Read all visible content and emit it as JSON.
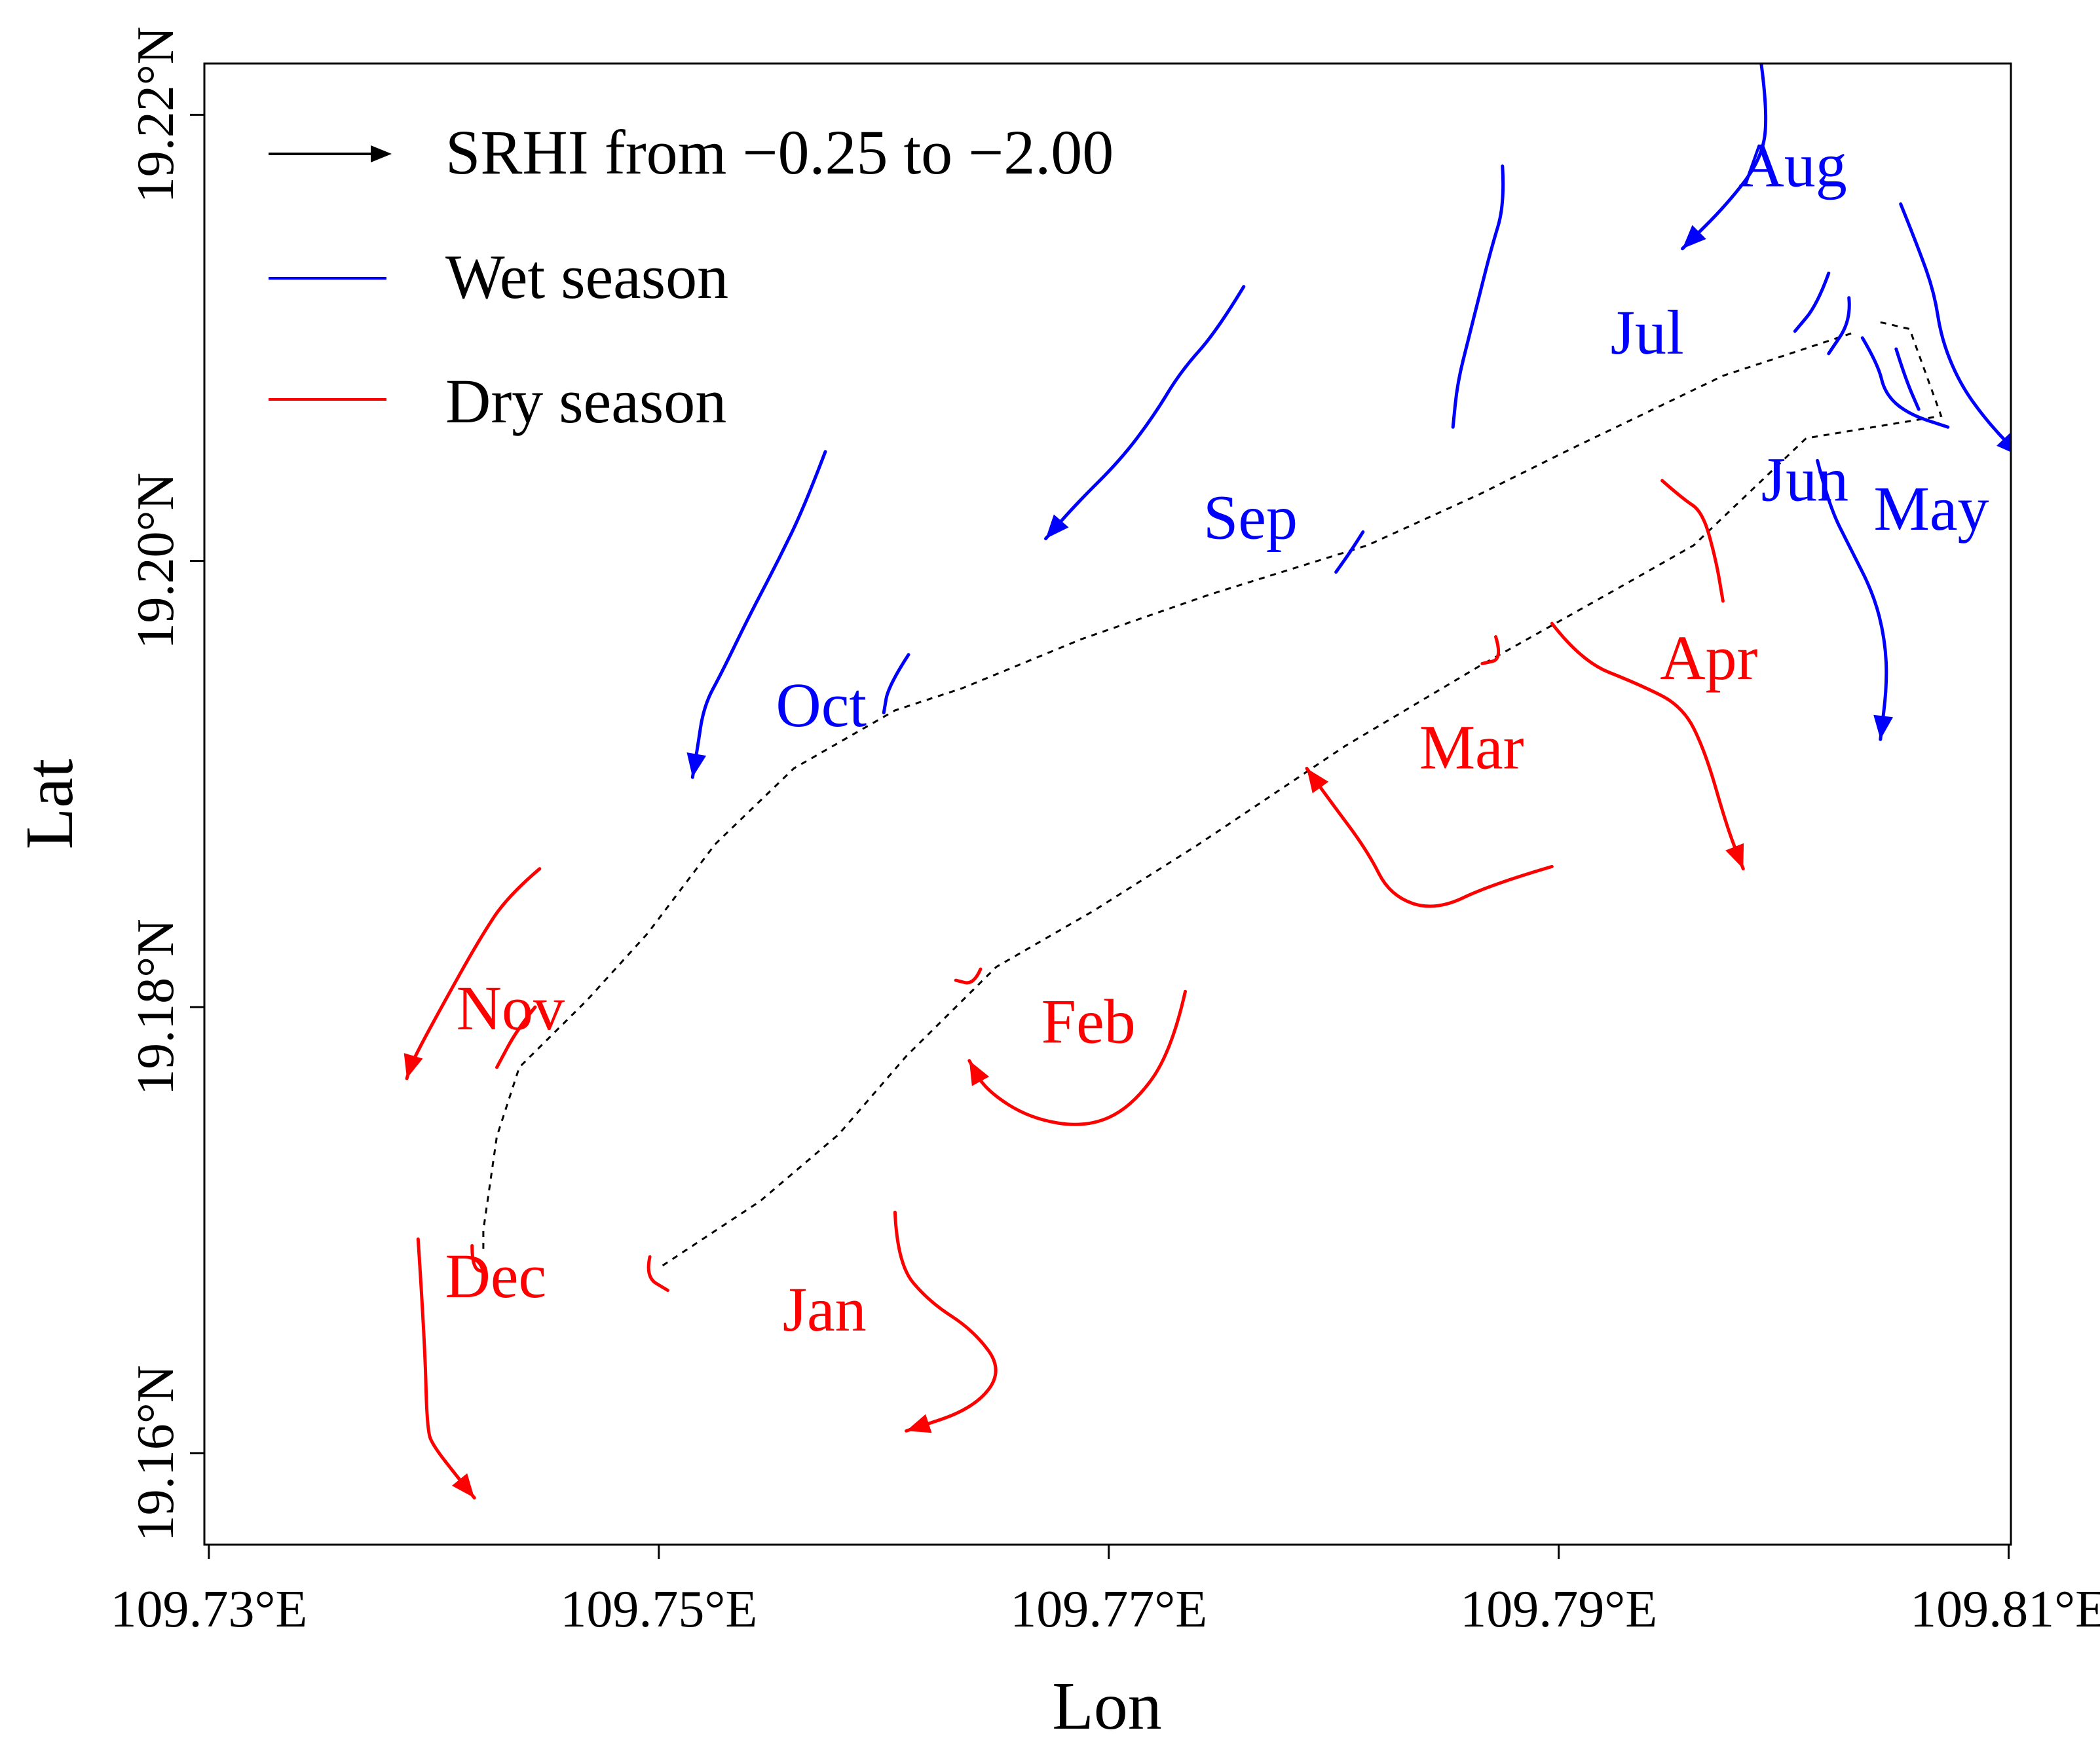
{
  "chart_data": {
    "type": "line",
    "title": "",
    "xlabel": "Lon",
    "ylabel": "Lat",
    "xlim": [
      109.7298,
      109.8101
    ],
    "ylim": [
      19.1559,
      19.2223
    ],
    "xticks": [
      {
        "value": 109.73,
        "label": "109.73°E"
      },
      {
        "value": 109.75,
        "label": "109.75°E"
      },
      {
        "value": 109.77,
        "label": "109.77°E"
      },
      {
        "value": 109.79,
        "label": "109.79°E"
      },
      {
        "value": 109.81,
        "label": "109.81°E"
      }
    ],
    "yticks": [
      {
        "value": 19.16,
        "label": "19.16°N"
      },
      {
        "value": 19.18,
        "label": "19.18°N"
      },
      {
        "value": 19.2,
        "label": "19.20°N"
      },
      {
        "value": 19.22,
        "label": "19.22°N"
      }
    ],
    "grid": false,
    "legend_position": "top-left",
    "legend": [
      {
        "kind": "arrow",
        "label": "SRHI from −0.25 to −2.00",
        "color": "#000000"
      },
      {
        "kind": "line",
        "label": "Wet season",
        "color": "#0000ff"
      },
      {
        "kind": "line",
        "label": "Dry season",
        "color": "#ff0000"
      }
    ],
    "colors": {
      "wet": "#0000ff",
      "dry": "#ff0000",
      "path": "#000000"
    },
    "series": [
      {
        "name": "May",
        "season": "wet",
        "label_at": [
          109.804,
          19.2014
        ],
        "arrow": true,
        "points": [
          [
            109.8052,
            19.216
          ],
          [
            109.806,
            19.214
          ],
          [
            109.8067,
            19.212
          ],
          [
            109.807,
            19.21
          ],
          [
            109.8078,
            19.208
          ],
          [
            109.809,
            19.2063
          ],
          [
            109.8105,
            19.2047
          ]
        ]
      },
      {
        "name": "Jun",
        "season": "wet",
        "label_at": [
          109.799,
          19.2027
        ],
        "arrow": true,
        "points": [
          [
            109.8015,
            19.2045
          ],
          [
            109.802,
            19.2025
          ],
          [
            109.803,
            19.2005
          ],
          [
            109.804,
            19.1985
          ],
          [
            109.8045,
            19.1965
          ],
          [
            109.8046,
            19.1945
          ],
          [
            109.8043,
            19.192
          ]
        ]
      },
      {
        "name": "Jul",
        "season": "wet",
        "label_at": [
          109.7923,
          19.2093
        ],
        "arrow": true,
        "points": [
          [
            109.799,
            19.2223
          ],
          [
            109.7993,
            19.22
          ],
          [
            109.799,
            19.218
          ],
          [
            109.7975,
            19.216
          ],
          [
            109.7955,
            19.214
          ]
        ]
      },
      {
        "name": "Aug",
        "season": "wet",
        "label_at": [
          109.798,
          19.2168
        ],
        "arrow": false,
        "points": [
          [
            109.802,
            19.2129
          ],
          [
            109.8015,
            19.2115
          ],
          [
            109.8005,
            19.2103
          ]
        ]
      },
      {
        "name": "",
        "season": "wet",
        "label_at": null,
        "arrow": false,
        "points": [
          [
            109.8029,
            19.2118
          ],
          [
            109.803,
            19.2108
          ],
          [
            109.802,
            19.2093
          ]
        ]
      },
      {
        "name": "",
        "season": "wet",
        "label_at": null,
        "arrow": false,
        "points": [
          [
            109.8035,
            19.21
          ],
          [
            109.8042,
            19.2088
          ],
          [
            109.8045,
            19.2075
          ],
          [
            109.8055,
            19.2066
          ],
          [
            109.8073,
            19.206
          ]
        ]
      },
      {
        "name": "",
        "season": "wet",
        "label_at": null,
        "arrow": false,
        "points": [
          [
            109.805,
            19.2095
          ],
          [
            109.8054,
            19.2082
          ],
          [
            109.806,
            19.2068
          ]
        ]
      },
      {
        "name": "",
        "season": "wet",
        "label_at": null,
        "arrow": false,
        "points": [
          [
            109.7875,
            19.2177
          ],
          [
            109.7876,
            19.216
          ],
          [
            109.787,
            19.214
          ],
          [
            109.7865,
            19.212
          ],
          [
            109.786,
            19.21
          ],
          [
            109.7855,
            19.208
          ],
          [
            109.7853,
            19.206
          ]
        ]
      },
      {
        "name": "Sep",
        "season": "wet",
        "label_at": [
          109.7742,
          19.201
        ],
        "arrow": true,
        "points": [
          [
            109.776,
            19.2123
          ],
          [
            109.7748,
            19.2103
          ],
          [
            109.7732,
            19.2085
          ],
          [
            109.772,
            19.2065
          ],
          [
            109.7705,
            19.2045
          ],
          [
            109.7685,
            19.2025
          ],
          [
            109.7672,
            19.201
          ]
        ]
      },
      {
        "name": "",
        "season": "wet",
        "label_at": null,
        "arrow": false,
        "points": [
          [
            109.7813,
            19.2013
          ],
          [
            109.7808,
            19.2005
          ],
          [
            109.7801,
            19.1995
          ]
        ]
      },
      {
        "name": "Oct",
        "season": "wet",
        "label_at": [
          109.7552,
          19.1926
        ],
        "arrow": true,
        "points": [
          [
            109.7574,
            19.2049
          ],
          [
            109.7565,
            19.2025
          ],
          [
            109.7553,
            19.2
          ],
          [
            109.754,
            19.1975
          ],
          [
            109.7528,
            19.195
          ],
          [
            109.752,
            19.1935
          ],
          [
            109.7517,
            19.1915
          ],
          [
            109.7515,
            19.1903
          ]
        ]
      },
      {
        "name": "",
        "season": "wet",
        "label_at": null,
        "arrow": false,
        "points": [
          [
            109.7611,
            19.1958
          ],
          [
            109.7602,
            19.1944
          ],
          [
            109.76,
            19.1932
          ]
        ]
      },
      {
        "name": "Apr",
        "season": "dry",
        "label_at": [
          109.7945,
          19.1947
        ],
        "arrow": false,
        "points": [
          [
            109.7946,
            19.2036
          ],
          [
            109.7955,
            19.2028
          ],
          [
            109.7964,
            19.2022
          ],
          [
            109.797,
            19.2
          ],
          [
            109.7973,
            19.1982
          ]
        ]
      },
      {
        "name": "",
        "season": "dry",
        "label_at": null,
        "arrow": true,
        "points": [
          [
            109.7897,
            19.1972
          ],
          [
            109.791,
            19.1955
          ],
          [
            109.7935,
            19.1945
          ],
          [
            109.7955,
            19.1935
          ],
          [
            109.7965,
            19.1915
          ],
          [
            109.7975,
            19.188
          ],
          [
            109.7982,
            19.1862
          ]
        ]
      },
      {
        "name": "Mar",
        "season": "dry",
        "label_at": [
          109.7838,
          19.1907
        ],
        "arrow": true,
        "points": [
          [
            109.7897,
            19.1863
          ],
          [
            109.787,
            19.1855
          ],
          [
            109.7845,
            19.1843
          ],
          [
            109.7825,
            19.185
          ],
          [
            109.7815,
            19.187
          ],
          [
            109.7798,
            19.1893
          ],
          [
            109.7788,
            19.1907
          ]
        ]
      },
      {
        "name": "",
        "season": "dry",
        "label_at": null,
        "arrow": false,
        "points": [
          [
            109.7872,
            19.1966
          ],
          [
            109.7875,
            19.1956
          ],
          [
            109.7866,
            19.1954
          ]
        ]
      },
      {
        "name": "Feb",
        "season": "dry",
        "label_at": [
          109.767,
          19.1784
        ],
        "arrow": true,
        "points": [
          [
            109.7734,
            19.1807
          ],
          [
            109.7728,
            19.178
          ],
          [
            109.771,
            19.1755
          ],
          [
            109.769,
            19.1746
          ],
          [
            109.7665,
            19.175
          ],
          [
            109.7645,
            19.1763
          ],
          [
            109.7638,
            19.1776
          ]
        ]
      },
      {
        "name": "",
        "season": "dry",
        "label_at": null,
        "arrow": false,
        "points": [
          [
            109.7643,
            19.1817
          ],
          [
            109.764,
            19.181
          ],
          [
            109.7632,
            19.1812
          ]
        ]
      },
      {
        "name": "Jan",
        "season": "dry",
        "label_at": [
          109.7555,
          19.1655
        ],
        "arrow": true,
        "points": [
          [
            109.7605,
            19.1708
          ],
          [
            109.7606,
            19.1685
          ],
          [
            109.762,
            19.1668
          ],
          [
            109.764,
            19.1655
          ],
          [
            109.7653,
            19.1637
          ],
          [
            109.764,
            19.162
          ],
          [
            109.761,
            19.161
          ]
        ]
      },
      {
        "name": "",
        "season": "dry",
        "label_at": null,
        "arrow": false,
        "points": [
          [
            109.7496,
            19.1688
          ],
          [
            109.7494,
            19.1679
          ],
          [
            109.7504,
            19.1673
          ]
        ]
      },
      {
        "name": "Nov",
        "season": "dry",
        "label_at": [
          109.741,
          19.179
        ],
        "arrow": true,
        "points": [
          [
            109.7447,
            19.1862
          ],
          [
            109.7433,
            19.185
          ],
          [
            109.742,
            19.183
          ],
          [
            109.7405,
            19.1803
          ],
          [
            109.739,
            19.1775
          ],
          [
            109.7388,
            19.1768
          ]
        ]
      },
      {
        "name": "",
        "season": "dry",
        "label_at": null,
        "arrow": false,
        "points": [
          [
            109.7445,
            19.18
          ],
          [
            109.7437,
            19.179
          ],
          [
            109.7428,
            19.1773
          ]
        ]
      },
      {
        "name": "Dec",
        "season": "dry",
        "label_at": [
          109.7405,
          19.167
        ],
        "arrow": true,
        "points": [
          [
            109.7393,
            19.1696
          ],
          [
            109.7396,
            19.165
          ],
          [
            109.7397,
            19.161
          ],
          [
            109.74,
            19.1603
          ],
          [
            109.741,
            19.159
          ],
          [
            109.7418,
            19.158
          ]
        ]
      },
      {
        "name": "",
        "season": "dry",
        "label_at": null,
        "arrow": false,
        "points": [
          [
            109.7417,
            19.1693
          ],
          [
            109.7417,
            19.1683
          ],
          [
            109.7423,
            19.1681
          ]
        ]
      }
    ],
    "paths": [
      [
        [
          109.803,
          19.2102
        ],
        [
          109.7973,
          19.2083
        ],
        [
          109.7905,
          19.205
        ],
        [
          109.7865,
          19.203
        ],
        [
          109.7815,
          19.2007
        ],
        [
          109.7745,
          19.1985
        ],
        [
          109.7688,
          19.1965
        ],
        [
          109.7635,
          19.1943
        ],
        [
          109.7605,
          19.1933
        ],
        [
          109.756,
          19.1907
        ],
        [
          109.7525,
          19.1873
        ],
        [
          109.7495,
          19.1833
        ],
        [
          109.7468,
          19.1803
        ],
        [
          109.7438,
          19.1773
        ],
        [
          109.7428,
          19.1742
        ],
        [
          109.7422,
          19.17
        ],
        [
          109.7422,
          19.169
        ]
      ],
      [
        [
          109.8043,
          19.2107
        ],
        [
          109.8056,
          19.2104
        ],
        [
          109.807,
          19.2065
        ],
        [
          109.801,
          19.2055
        ],
        [
          109.796,
          19.2007
        ],
        [
          109.7925,
          19.1987
        ],
        [
          109.7865,
          19.1953
        ],
        [
          109.7805,
          19.1917
        ],
        [
          109.774,
          19.1873
        ],
        [
          109.7693,
          19.1843
        ],
        [
          109.765,
          19.1818
        ],
        [
          109.761,
          19.1778
        ],
        [
          109.758,
          19.1743
        ],
        [
          109.7545,
          19.1713
        ],
        [
          109.75,
          19.1683
        ]
      ]
    ]
  }
}
